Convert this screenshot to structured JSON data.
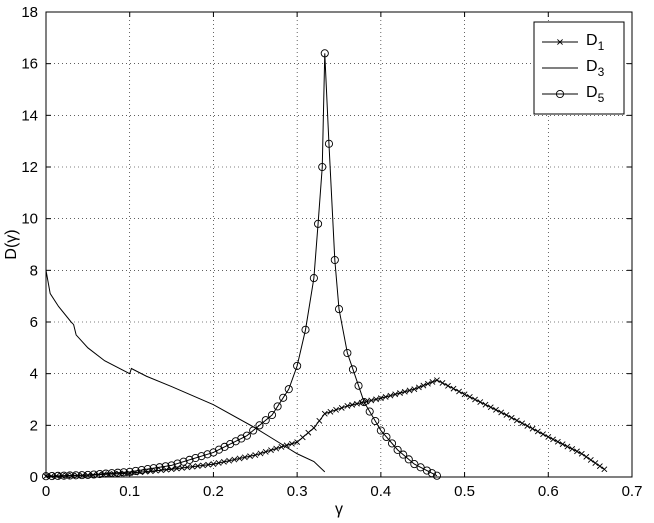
{
  "chart_data": {
    "type": "line",
    "title": "",
    "xlabel": "γ",
    "ylabel": "D(γ)",
    "xlim": [
      0,
      0.7
    ],
    "ylim": [
      0,
      18
    ],
    "xticks": [
      "0",
      "0.1",
      "0.2",
      "0.3",
      "0.4",
      "0.5",
      "0.6",
      "0.7"
    ],
    "yticks": [
      "0",
      "2",
      "4",
      "6",
      "8",
      "10",
      "12",
      "14",
      "16",
      "18"
    ],
    "grid": true,
    "grid_style": "dotted",
    "legend_position": "top-right",
    "series": [
      {
        "name": "D",
        "subscript": "1",
        "marker": "x",
        "x": [
          0.0,
          0.05,
          0.1,
          0.15,
          0.2,
          0.25,
          0.3,
          0.32,
          0.333,
          0.36,
          0.4,
          0.44,
          0.467,
          0.5,
          0.55,
          0.6,
          0.64,
          0.667
        ],
        "y": [
          0.03,
          0.07,
          0.15,
          0.3,
          0.5,
          0.85,
          1.35,
          1.9,
          2.45,
          2.75,
          3.05,
          3.4,
          3.75,
          3.2,
          2.4,
          1.55,
          0.9,
          0.3
        ]
      },
      {
        "name": "D",
        "subscript": "3",
        "marker": "none",
        "x": [
          0.0,
          0.005,
          0.015,
          0.03,
          0.033,
          0.036,
          0.05,
          0.07,
          0.1,
          0.102,
          0.12,
          0.15,
          0.2,
          0.25,
          0.27,
          0.3,
          0.32,
          0.333
        ],
        "y": [
          8.0,
          7.1,
          6.6,
          6.0,
          5.9,
          5.5,
          5.0,
          4.5,
          4.0,
          4.2,
          3.9,
          3.5,
          2.8,
          1.9,
          1.5,
          0.9,
          0.6,
          0.2
        ]
      },
      {
        "name": "D",
        "subscript": "5",
        "marker": "o",
        "x": [
          0.0,
          0.05,
          0.1,
          0.15,
          0.2,
          0.24,
          0.27,
          0.29,
          0.3,
          0.31,
          0.32,
          0.325,
          0.33,
          0.333,
          0.338,
          0.345,
          0.35,
          0.36,
          0.38,
          0.4,
          0.42,
          0.44,
          0.455,
          0.467
        ],
        "y": [
          0.03,
          0.08,
          0.2,
          0.45,
          0.95,
          1.6,
          2.4,
          3.4,
          4.3,
          5.7,
          7.7,
          9.8,
          12.0,
          16.4,
          12.9,
          8.4,
          6.5,
          4.8,
          2.9,
          1.8,
          1.05,
          0.5,
          0.25,
          0.05
        ]
      }
    ]
  }
}
